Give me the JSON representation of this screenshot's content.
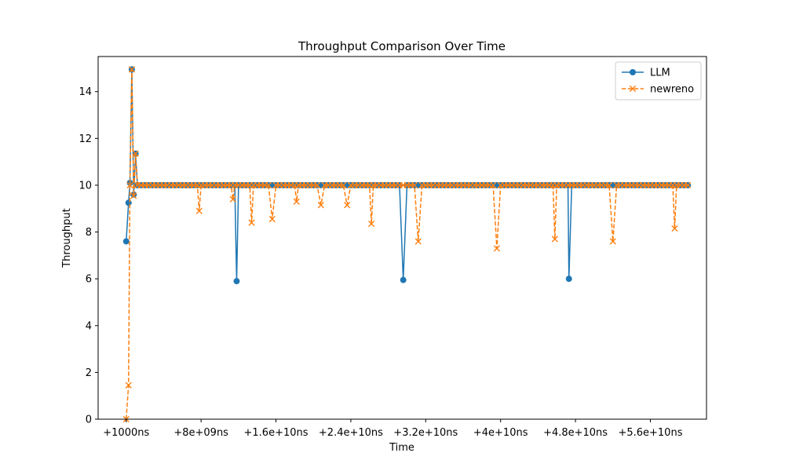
{
  "chart_data": {
    "type": "line",
    "title": "Throughput Comparison Over Time",
    "xlabel": "Time",
    "ylabel": "Throughput",
    "xlim": [
      -3000000000,
      62000000000
    ],
    "ylim": [
      0,
      15.5
    ],
    "x_ticks": [
      {
        "value": 1000,
        "label": "+1000ns"
      },
      {
        "value": 8000000000,
        "label": "+8e+09ns"
      },
      {
        "value": 16000000000,
        "label": "+1.6e+10ns"
      },
      {
        "value": 24000000000,
        "label": "+2.4e+10ns"
      },
      {
        "value": 32000000000,
        "label": "+3.2e+10ns"
      },
      {
        "value": 40000000000,
        "label": "+4e+10ns"
      },
      {
        "value": 48000000000,
        "label": "+4.8e+10ns"
      },
      {
        "value": 56000000000,
        "label": "+5.6e+10ns"
      }
    ],
    "y_ticks": [
      {
        "value": 0,
        "label": "0"
      },
      {
        "value": 2,
        "label": "2"
      },
      {
        "value": 4,
        "label": "4"
      },
      {
        "value": 6,
        "label": "6"
      },
      {
        "value": 8,
        "label": "8"
      },
      {
        "value": 10,
        "label": "10"
      },
      {
        "value": 12,
        "label": "12"
      },
      {
        "value": 14,
        "label": "14"
      }
    ],
    "grid": false,
    "legend_position": "top-right",
    "x_range": {
      "start": 0,
      "end": 60000000000,
      "step": 400000000
    },
    "series": [
      {
        "name": "LLM",
        "color": "#1f77b4",
        "line_style": "solid",
        "marker": "circle",
        "default_value": 10,
        "points": [
          {
            "x": 0,
            "y": 7.6
          },
          {
            "x": 250000000,
            "y": 9.25
          },
          {
            "x": 400000000,
            "y": 10.1
          },
          {
            "x": 600000000,
            "y": 14.95
          },
          {
            "x": 800000000,
            "y": 9.6
          },
          {
            "x": 1000000000,
            "y": 11.35
          },
          {
            "x": 1200000000,
            "y": 10.0
          },
          {
            "x": 11800000000,
            "y": 5.9
          },
          {
            "x": 29600000000,
            "y": 5.95
          },
          {
            "x": 47300000000,
            "y": 6.0
          }
        ]
      },
      {
        "name": "newreno",
        "color": "#ff7f0e",
        "line_style": "dashed",
        "marker": "x",
        "default_value": 10,
        "points": [
          {
            "x": 0,
            "y": 0.0
          },
          {
            "x": 250000000,
            "y": 1.45
          },
          {
            "x": 600000000,
            "y": 14.95
          },
          {
            "x": 800000000,
            "y": 9.55
          },
          {
            "x": 1000000000,
            "y": 11.35
          },
          {
            "x": 1200000000,
            "y": 10.0
          },
          {
            "x": 7800000000,
            "y": 8.9
          },
          {
            "x": 11400000000,
            "y": 9.4
          },
          {
            "x": 13400000000,
            "y": 8.4
          },
          {
            "x": 15600000000,
            "y": 8.55
          },
          {
            "x": 18200000000,
            "y": 9.3
          },
          {
            "x": 20800000000,
            "y": 9.15
          },
          {
            "x": 23600000000,
            "y": 9.15
          },
          {
            "x": 26200000000,
            "y": 8.35
          },
          {
            "x": 31200000000,
            "y": 7.6
          },
          {
            "x": 39600000000,
            "y": 7.3
          },
          {
            "x": 45800000000,
            "y": 7.7
          },
          {
            "x": 52000000000,
            "y": 7.6
          },
          {
            "x": 58600000000,
            "y": 8.15
          }
        ]
      }
    ]
  }
}
